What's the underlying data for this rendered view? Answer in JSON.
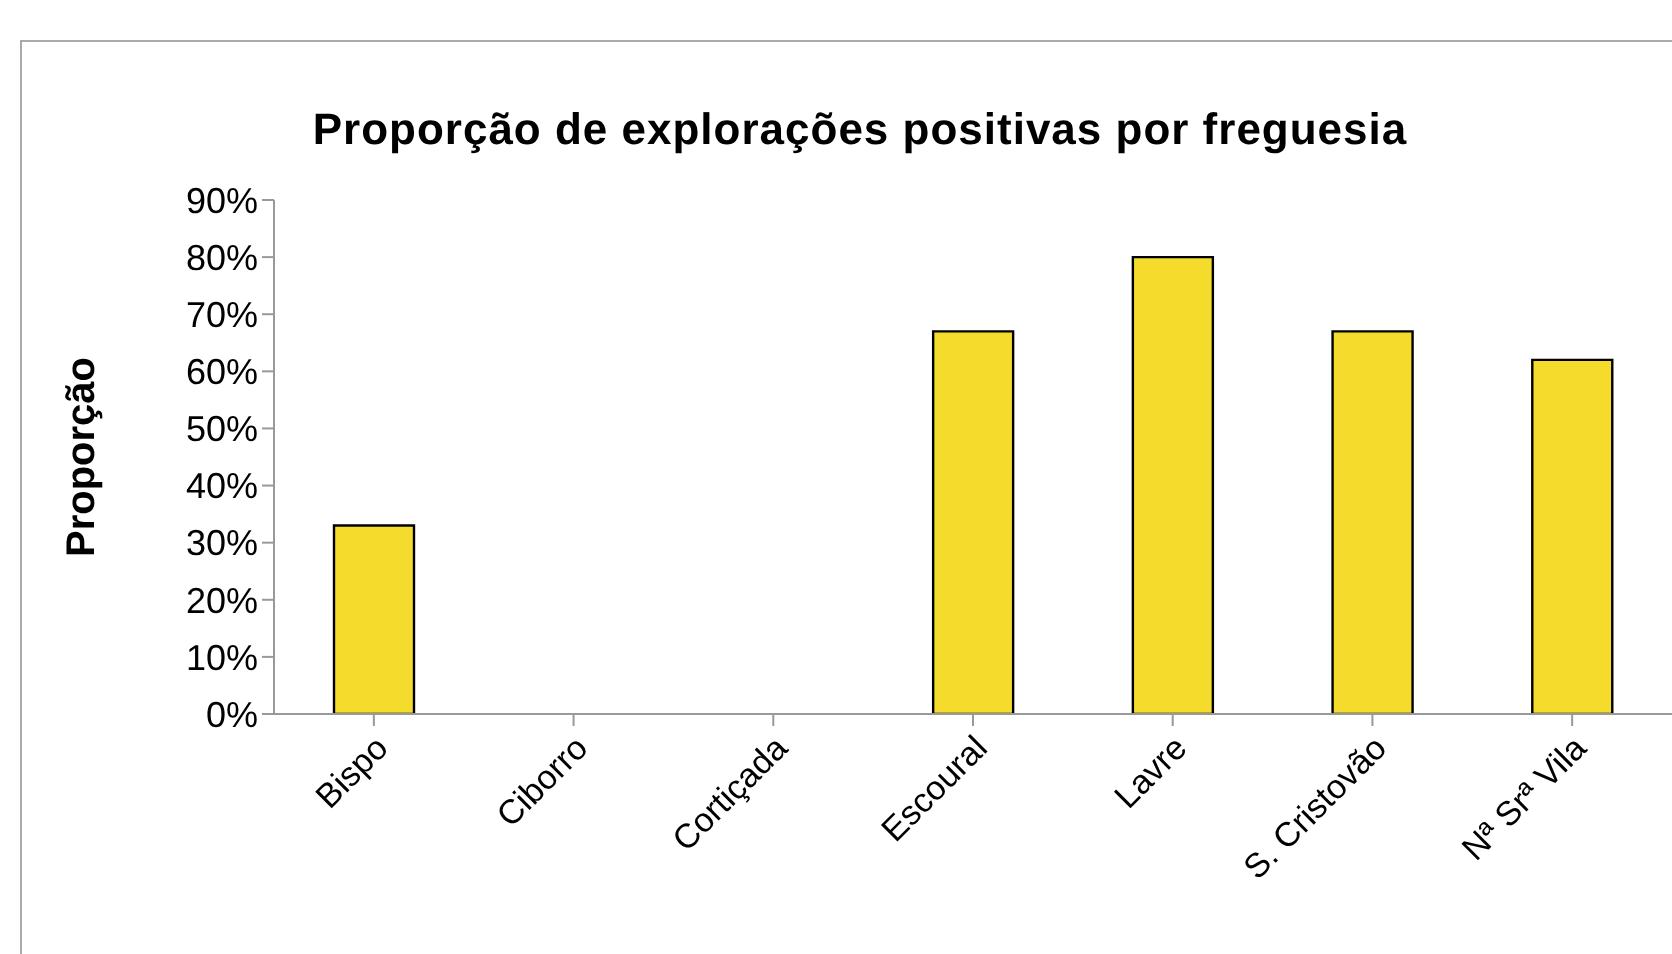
{
  "chart_data": {
    "type": "bar",
    "title": "Proporção de explorações positivas por freguesia",
    "ylabel": "Proporção",
    "categories": [
      "Bispo",
      "Ciborro",
      "Cortiçada",
      "Escoural",
      "Lavre",
      "S. Cristovão",
      "Nª Srª Vila"
    ],
    "values": [
      33,
      0,
      0,
      67,
      80,
      67,
      62
    ],
    "color": "#f5dc2c",
    "ylim": [
      0,
      90
    ],
    "yticks": [
      {
        "value": 0,
        "label": "0%"
      },
      {
        "value": 10,
        "label": "10%"
      },
      {
        "value": 20,
        "label": "20%"
      },
      {
        "value": 30,
        "label": "30%"
      },
      {
        "value": 40,
        "label": "40%"
      },
      {
        "value": 50,
        "label": "50%"
      },
      {
        "value": 60,
        "label": "60%"
      },
      {
        "value": 70,
        "label": "70%"
      },
      {
        "value": 80,
        "label": "80%"
      },
      {
        "value": 90,
        "label": "90%"
      }
    ],
    "grid": false,
    "legend": false
  }
}
